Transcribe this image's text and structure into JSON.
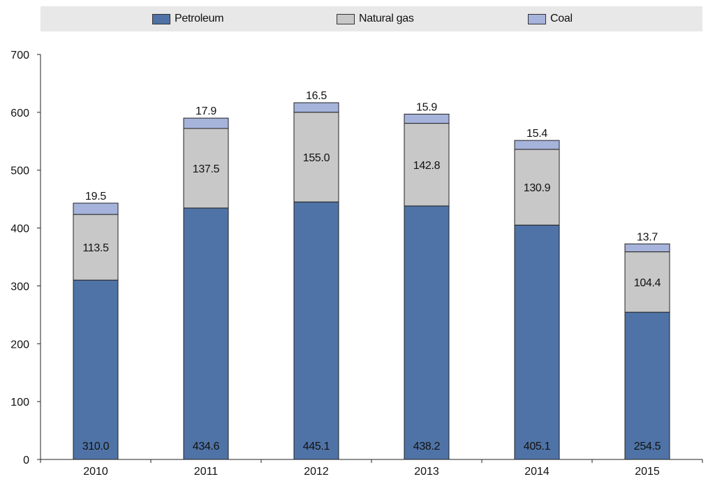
{
  "chart_data": {
    "type": "bar",
    "stacked": true,
    "categories": [
      "2010",
      "2011",
      "2012",
      "2013",
      "2014",
      "2015"
    ],
    "series": [
      {
        "name": "Petroleum",
        "color": "#4f73a6",
        "values": [
          310.0,
          434.6,
          445.1,
          438.2,
          405.1,
          254.5
        ],
        "labels": [
          "310.0",
          "434.6",
          "445.1",
          "438.2",
          "405.1",
          "254.5"
        ]
      },
      {
        "name": "Natural gas",
        "color": "#c8c8c8",
        "values": [
          113.5,
          137.5,
          155.0,
          142.8,
          130.9,
          104.4
        ],
        "labels": [
          "113.5",
          "137.5",
          "155.0",
          "142.8",
          "130.9",
          "104.4"
        ]
      },
      {
        "name": "Coal",
        "color": "#a6b3db",
        "values": [
          19.5,
          17.9,
          16.5,
          15.9,
          15.4,
          13.7
        ],
        "labels": [
          "19.5",
          "17.9",
          "16.5",
          "15.9",
          "15.4",
          "13.7"
        ]
      }
    ],
    "y_ticks": [
      "0",
      "100",
      "200",
      "300",
      "400",
      "500",
      "600",
      "700"
    ],
    "ylim": [
      0,
      700
    ],
    "grid": false,
    "legend_position": "top",
    "title": "",
    "xlabel": "",
    "ylabel": ""
  }
}
